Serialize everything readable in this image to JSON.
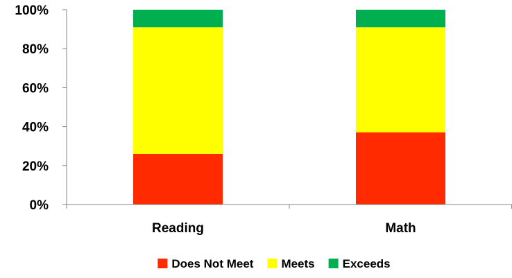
{
  "chart_data": {
    "type": "bar",
    "stacked": true,
    "categories": [
      "Reading",
      "Math"
    ],
    "series": [
      {
        "name": "Does Not Meet",
        "values": [
          26,
          37
        ],
        "color": "#ff2a00"
      },
      {
        "name": "Meets",
        "values": [
          65,
          54
        ],
        "color": "#ffff00"
      },
      {
        "name": "Exceeds",
        "values": [
          9,
          9
        ],
        "color": "#00b050"
      }
    ],
    "yticks": [
      "0%",
      "20%",
      "40%",
      "60%",
      "80%",
      "100%"
    ],
    "ylim": [
      0,
      100
    ],
    "grid": false,
    "legend_position": "bottom"
  }
}
